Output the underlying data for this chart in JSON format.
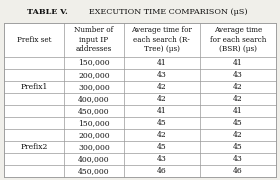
{
  "title": "TABLE V.",
  "subtitle": "EXECUTION TIME COMPARISON (μS)",
  "col_headers": [
    "Prefix set",
    "Number of\ninput IP\naddresses",
    "Average time for\neach search (R-\nTree) (μs)",
    "Average time\nfor each search\n(BSR) (μs)"
  ],
  "rows": [
    [
      "Prefix1",
      "150,000",
      "41",
      "41"
    ],
    [
      "",
      "200,000",
      "43",
      "43"
    ],
    [
      "",
      "300,000",
      "42",
      "42"
    ],
    [
      "",
      "400,000",
      "42",
      "42"
    ],
    [
      "",
      "450,000",
      "41",
      "41"
    ],
    [
      "Prefix2",
      "150,000",
      "45",
      "45"
    ],
    [
      "",
      "200,000",
      "42",
      "42"
    ],
    [
      "",
      "300,000",
      "45",
      "45"
    ],
    [
      "",
      "400,000",
      "43",
      "43"
    ],
    [
      "",
      "450,000",
      "46",
      "46"
    ]
  ],
  "prefix1_label_row": 0,
  "prefix2_label_row": 5,
  "bg_color": "#f0efea",
  "line_color": "#999999",
  "text_color": "#111111",
  "header_fontsize": 5.2,
  "cell_fontsize": 5.5,
  "title_fontsize": 5.8
}
